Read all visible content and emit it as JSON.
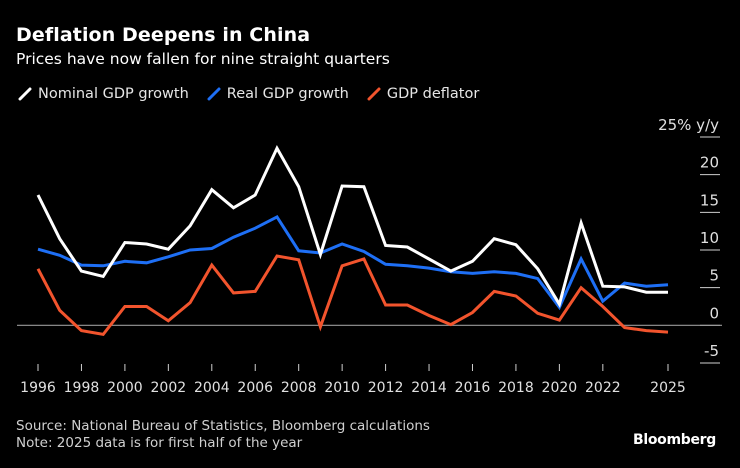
{
  "header": {
    "title": "Deflation Deepens in China",
    "subtitle": "Prices have now fallen for nine straight quarters"
  },
  "footer": {
    "source": "Source: National Bureau of Statistics, Bloomberg calculations",
    "note": "Note: 2025 data is for first half of the year",
    "brand": "Bloomberg"
  },
  "chart_data": {
    "type": "line",
    "title": "Deflation Deepens in China",
    "subtitle": "Prices have now fallen for nine straight quarters",
    "xlabel": "",
    "ylabel": "% y/y",
    "y_unit_label": "25% y/y",
    "ylim": [
      -5,
      25
    ],
    "yticks": [
      -5,
      0,
      5,
      10,
      15,
      20,
      25
    ],
    "ytick_labels": [
      "-5",
      "0",
      "5",
      "10",
      "15",
      "20",
      "25% y/y"
    ],
    "xlim": [
      1996,
      2025
    ],
    "xticks": [
      1996,
      1998,
      2000,
      2002,
      2004,
      2006,
      2008,
      2010,
      2012,
      2014,
      2016,
      2018,
      2020,
      2022,
      2025
    ],
    "xtick_labels": [
      "1996",
      "1998",
      "2000",
      "2002",
      "2004",
      "2006",
      "2008",
      "2010",
      "2012",
      "2014",
      "2016",
      "2018",
      "2020",
      "2022",
      "2025"
    ],
    "grid": false,
    "zero_line": true,
    "legend_position": "top-left",
    "x": [
      1996,
      1997,
      1998,
      1999,
      2000,
      2001,
      2002,
      2003,
      2004,
      2005,
      2006,
      2007,
      2008,
      2009,
      2010,
      2011,
      2012,
      2013,
      2014,
      2015,
      2016,
      2017,
      2018,
      2019,
      2020,
      2021,
      2022,
      2023,
      2024,
      2025
    ],
    "series": [
      {
        "name": "Nominal GDP growth",
        "color": "#ffffff",
        "values": [
          17.3,
          11.5,
          7.2,
          6.5,
          11.0,
          10.8,
          10.1,
          13.2,
          18.0,
          15.6,
          17.3,
          23.5,
          18.4,
          9.4,
          18.5,
          18.4,
          10.6,
          10.4,
          8.8,
          7.2,
          8.5,
          11.5,
          10.7,
          7.5,
          2.8,
          13.6,
          5.2,
          5.1,
          4.4,
          4.4
        ]
      },
      {
        "name": "Real GDP growth",
        "color": "#1e6ff5",
        "values": [
          10.1,
          9.3,
          8.0,
          7.9,
          8.5,
          8.3,
          9.1,
          10.0,
          10.2,
          11.7,
          12.9,
          14.4,
          9.9,
          9.6,
          10.8,
          9.8,
          8.1,
          7.9,
          7.6,
          7.1,
          6.9,
          7.1,
          6.9,
          6.2,
          2.4,
          8.8,
          3.2,
          5.6,
          5.2,
          5.4
        ]
      },
      {
        "name": "GDP deflator",
        "color": "#f2542d",
        "values": [
          7.5,
          2.0,
          -0.7,
          -1.2,
          2.5,
          2.5,
          0.6,
          3.0,
          8.0,
          4.3,
          4.5,
          9.2,
          8.7,
          -0.2,
          7.9,
          8.8,
          2.7,
          2.7,
          1.3,
          0.1,
          1.7,
          4.5,
          3.9,
          1.6,
          0.7,
          5.0,
          2.5,
          -0.3,
          -0.7,
          -0.9
        ]
      }
    ]
  }
}
